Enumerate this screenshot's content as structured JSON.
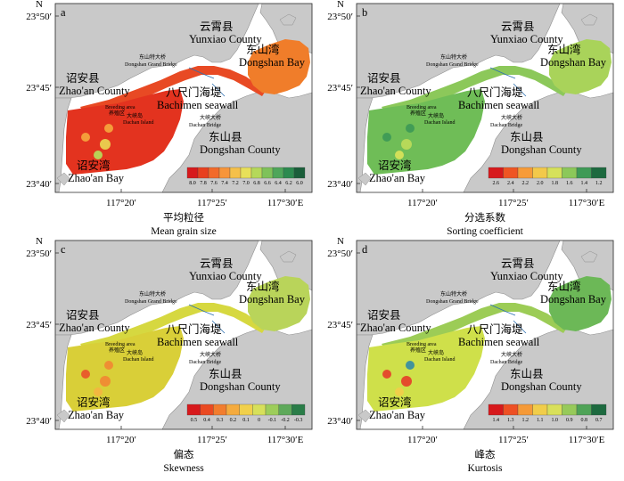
{
  "panels": [
    {
      "id": "a",
      "caption_cn": "平均粒径",
      "caption_en": "Mean grain size",
      "legend_ticks": [
        "8.0",
        "7.8",
        "7.6",
        "7.4",
        "7.2",
        "7.0",
        "6.8",
        "6.6",
        "6.4",
        "6.2",
        "6.0"
      ],
      "legend_colors": [
        "#d7191c",
        "#e8401f",
        "#f26a2a",
        "#f7953a",
        "#f5c04a",
        "#e8e05a",
        "#b5d85a",
        "#7fc25a",
        "#4ea65a",
        "#2c8a4f",
        "#1a5e3a"
      ],
      "fill_main": "#e3331f",
      "fill_bay": "#f07d2a",
      "fill_channel": "#e84a24",
      "spots": [
        {
          "c": "#f4a33c"
        },
        {
          "c": "#f4a33c"
        },
        {
          "c": "#e9d150"
        },
        {
          "c": "#b6d95a"
        }
      ]
    },
    {
      "id": "b",
      "caption_cn": "分选系数",
      "caption_en": "Sorting coefficient",
      "legend_ticks": [
        "2.6",
        "2.4",
        "2.2",
        "2.0",
        "1.8",
        "1.6",
        "1.4",
        "1.2"
      ],
      "legend_colors": [
        "#d7191c",
        "#ef5523",
        "#f79b38",
        "#f3c94a",
        "#d6e15a",
        "#8cc85a",
        "#3e9a56",
        "#1d6a3f"
      ],
      "fill_main": "#6fbd57",
      "fill_bay": "#a9d35a",
      "fill_channel": "#8cc85a",
      "spots": [
        {
          "c": "#3e9a56"
        },
        {
          "c": "#3e9a56"
        },
        {
          "c": "#b9da5a"
        },
        {
          "c": "#d6e15a"
        }
      ]
    },
    {
      "id": "c",
      "caption_cn": "偏态",
      "caption_en": "Skewness",
      "legend_ticks": [
        "0.5",
        "0.4",
        "0.3",
        "0.2",
        "0.1",
        "0",
        "-0.1",
        "-0.2",
        "-0.3"
      ],
      "legend_colors": [
        "#d7191c",
        "#ea4a22",
        "#f27d2e",
        "#f5ab3e",
        "#f1d04b",
        "#d7e05a",
        "#9dcd5a",
        "#5ea95a",
        "#2a7d48"
      ],
      "fill_main": "#d9cf38",
      "fill_bay": "#b9d45a",
      "fill_channel": "#d6d840",
      "spots": [
        {
          "c": "#e9562a"
        },
        {
          "c": "#f08a33"
        },
        {
          "c": "#f08a33"
        },
        {
          "c": "#f3b540"
        }
      ]
    },
    {
      "id": "d",
      "caption_cn": "峰态",
      "caption_en": "Kurtosis",
      "legend_ticks": [
        "1.4",
        "1.3",
        "1.2",
        "1.1",
        "1.0",
        "0.9",
        "0.8",
        "0.7"
      ],
      "legend_colors": [
        "#d7191c",
        "#ee5024",
        "#f59a38",
        "#f1cd4a",
        "#d9e05a",
        "#97ca5a",
        "#4fa357",
        "#1d6a3f"
      ],
      "fill_main": "#cfe04a",
      "fill_bay": "#6cb857",
      "fill_channel": "#9ccc56",
      "spots": [
        {
          "c": "#e5432a"
        },
        {
          "c": "#3a8ea0"
        },
        {
          "c": "#e5432a"
        },
        {
          "c": "#f1cd4a"
        }
      ]
    }
  ],
  "map_labels": {
    "yunxiao_cn": "云霄县",
    "yunxiao_en": "Yunxiao County",
    "dongshanbay_cn": "东山湾",
    "dongshanbay_en": "Dongshan Bay",
    "zhaoan_county_cn": "诏安县",
    "zhaoan_county_en": "Zhao'an County",
    "bachimen_cn": "八尺门海堤",
    "bachimen_en": "Bachimen seawall",
    "dongshan_county_cn": "东山县",
    "dongshan_county_en": "Dongshan County",
    "zhaoan_bay_cn": "诏安湾",
    "zhaoan_bay_en": "Zhao'an Bay",
    "grand_bridge_cn": "东山特大桥",
    "grand_bridge_en": "Dongshan Grand Bridge",
    "breeding_en": "Breeding area",
    "breeding_cn": "养殖区",
    "dachan_bridge_cn": "大峡大桥",
    "dachan_bridge_en": "Dachan Bridge",
    "dachan_island_cn": "大峡岛",
    "dachan_island_en": "Dachan Island"
  },
  "axes": {
    "north": "N",
    "lat_ticks": [
      "23°50′",
      "23°45′",
      "23°40′"
    ],
    "lon_ticks": [
      "117°20′",
      "117°25′",
      "117°30′E"
    ]
  },
  "colors": {
    "land": "#c9c9c9",
    "water": "#ffffff",
    "coast": "#8f8f8f"
  }
}
